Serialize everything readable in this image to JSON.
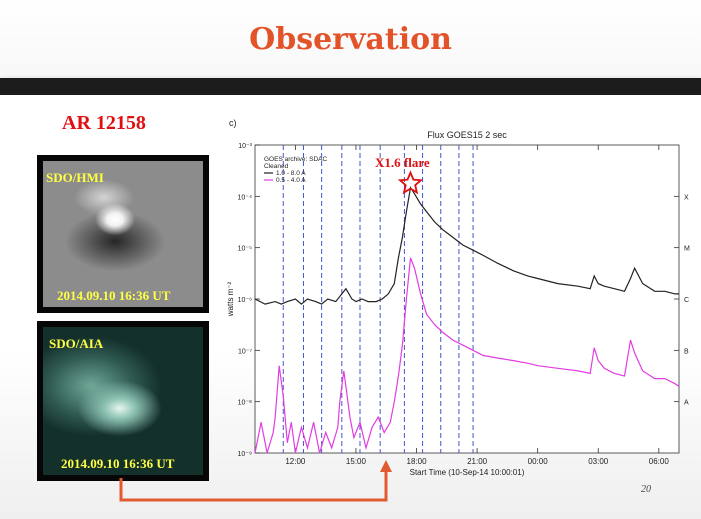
{
  "slide": {
    "title": "Observation",
    "page_number": "20"
  },
  "region_label": "AR 12158",
  "images": [
    {
      "top_label": "SDO/HMI",
      "bottom_label": "2014.09.10 16:36 UT"
    },
    {
      "top_label": "SDO/AIA",
      "bottom_label": "2014.09.10 16:36 UT"
    }
  ],
  "colors": {
    "title": "#e2532a",
    "region": "#e01010",
    "arrow": "#e25a30",
    "long_channel": "#222222",
    "short_channel": "#e23ce2",
    "dash_lines": "#4455cc"
  },
  "chart_data": {
    "type": "line",
    "panel_label": "c)",
    "title": "Flux  GOES15 2 sec",
    "xlabel": "Start Time (10-Sep-14 10:00:01)",
    "ylabel": "watts m⁻²",
    "x_unit": "hours since 10-Sep-14 10:00 UT",
    "xlim": [
      10,
      31
    ],
    "ylim_exp": [
      -9,
      -3
    ],
    "y_scale": "log",
    "x_ticks": [
      "12:00",
      "15:00",
      "18:00",
      "21:00",
      "00:00",
      "03:00",
      "06:00"
    ],
    "x_tick_hours": [
      12,
      15,
      18,
      21,
      24,
      27,
      30
    ],
    "y_tick_labels": [
      {
        "exp": -3,
        "label": "10⁻³"
      },
      {
        "exp": -4,
        "label": "10⁻⁴"
      },
      {
        "exp": -5,
        "label": "10⁻⁵"
      },
      {
        "exp": -6,
        "label": "10⁻⁶"
      },
      {
        "exp": -7,
        "label": "10⁻⁷"
      },
      {
        "exp": -8,
        "label": "10⁻⁸"
      },
      {
        "exp": -9,
        "label": "10⁻⁹"
      }
    ],
    "flare_classes": [
      {
        "exp": -4,
        "label": "X"
      },
      {
        "exp": -5,
        "label": "M"
      },
      {
        "exp": -6,
        "label": "C"
      },
      {
        "exp": -7,
        "label": "B"
      },
      {
        "exp": -8,
        "label": "A"
      }
    ],
    "legend": {
      "header1": "GOES archive: SDAC",
      "header2": "Cleaned",
      "entries": [
        "1.0 - 8.0 A",
        "0.5 - 4.0 A"
      ]
    },
    "annotation": {
      "text": "X1.6 flare",
      "color": "#e01010"
    },
    "dashed_lines_hours": [
      11.4,
      12.4,
      13.3,
      14.3,
      15.2,
      16.2,
      17.4,
      18.3,
      19.2,
      20.1,
      20.8
    ],
    "peak": {
      "hour": 17.7,
      "exp": -3.83
    },
    "series": [
      {
        "name": "1.0 - 8.0 A",
        "color": "#222222",
        "x": [
          10.0,
          10.5,
          11.0,
          11.3,
          11.6,
          12.0,
          12.3,
          12.6,
          13.0,
          13.3,
          13.6,
          14.0,
          14.3,
          14.5,
          14.8,
          15.0,
          15.3,
          15.6,
          16.0,
          16.3,
          16.6,
          16.9,
          17.1,
          17.3,
          17.5,
          17.7,
          17.9,
          18.2,
          18.5,
          18.9,
          19.3,
          19.8,
          20.3,
          20.8,
          21.3,
          22.0,
          22.8,
          23.5,
          24.0,
          25.0,
          26.0,
          26.6,
          26.8,
          27.0,
          27.3,
          27.8,
          28.3,
          28.6,
          28.8,
          29.2,
          29.8,
          30.3,
          30.8,
          31.0
        ],
        "y_exp": [
          -6.0,
          -6.1,
          -6.05,
          -6.1,
          -6.05,
          -6.0,
          -6.1,
          -6.0,
          -6.05,
          -6.1,
          -6.0,
          -6.05,
          -5.9,
          -5.8,
          -6.0,
          -6.05,
          -6.0,
          -6.05,
          -6.05,
          -6.0,
          -5.9,
          -5.7,
          -5.2,
          -4.8,
          -4.3,
          -3.83,
          -3.95,
          -4.15,
          -4.3,
          -4.5,
          -4.65,
          -4.8,
          -4.95,
          -5.05,
          -5.15,
          -5.3,
          -5.45,
          -5.55,
          -5.6,
          -5.7,
          -5.75,
          -5.8,
          -5.55,
          -5.7,
          -5.75,
          -5.8,
          -5.85,
          -5.6,
          -5.4,
          -5.7,
          -5.85,
          -5.85,
          -5.9,
          -5.9
        ]
      },
      {
        "name": "0.5 - 4.0 A",
        "color": "#e23ce2",
        "x": [
          10.0,
          10.3,
          10.6,
          10.9,
          11.0,
          11.2,
          11.4,
          11.6,
          11.8,
          12.0,
          12.3,
          12.6,
          12.9,
          13.2,
          13.5,
          13.8,
          14.1,
          14.2,
          14.4,
          14.5,
          14.7,
          14.9,
          15.2,
          15.5,
          15.8,
          16.1,
          16.4,
          16.7,
          16.9,
          17.1,
          17.3,
          17.5,
          17.7,
          17.9,
          18.2,
          18.5,
          18.9,
          19.3,
          19.8,
          20.3,
          20.8,
          21.3,
          22.0,
          22.8,
          23.5,
          24.0,
          25.0,
          26.0,
          26.6,
          26.8,
          27.0,
          27.3,
          27.8,
          28.3,
          28.6,
          28.8,
          29.2,
          29.8,
          30.3,
          30.8,
          31.0
        ],
        "y_exp": [
          -9.0,
          -8.4,
          -9.0,
          -8.6,
          -8.3,
          -7.3,
          -7.9,
          -8.8,
          -8.4,
          -9.0,
          -8.5,
          -8.9,
          -8.4,
          -9.0,
          -8.6,
          -8.9,
          -8.5,
          -8.0,
          -7.4,
          -7.7,
          -8.3,
          -8.7,
          -8.4,
          -8.9,
          -8.5,
          -8.3,
          -8.6,
          -8.4,
          -8.0,
          -7.5,
          -6.9,
          -6.0,
          -5.2,
          -5.4,
          -5.9,
          -6.3,
          -6.5,
          -6.65,
          -6.8,
          -6.9,
          -7.0,
          -7.1,
          -7.15,
          -7.2,
          -7.25,
          -7.3,
          -7.35,
          -7.4,
          -7.45,
          -6.95,
          -7.2,
          -7.35,
          -7.45,
          -7.5,
          -6.8,
          -7.05,
          -7.4,
          -7.55,
          -7.55,
          -7.65,
          -7.7
        ]
      }
    ]
  }
}
